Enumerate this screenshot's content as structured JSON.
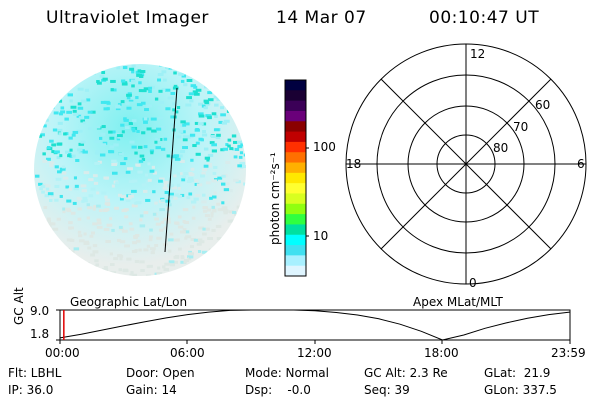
{
  "header": {
    "instrument": "Ultraviolet Imager",
    "date": "14 Mar 07",
    "time": "00:10:47 UT"
  },
  "colorbar": {
    "unit_label": "photon cm⁻²s⁻¹",
    "ticks": [
      "100",
      "10"
    ],
    "scale": "log",
    "colors": [
      "#000040",
      "#1a0033",
      "#3b0057",
      "#6a007a",
      "#8a0000",
      "#c00000",
      "#ff3000",
      "#ff7000",
      "#ffb000",
      "#ffe800",
      "#ffff30",
      "#d8ff20",
      "#90ff10",
      "#30ff40",
      "#00e0a0",
      "#00ffff",
      "#40e0f0",
      "#a8f0ff",
      "#dff5ff"
    ]
  },
  "polar_plot": {
    "hour_labels": {
      "top": "12",
      "left": "18",
      "right": "6",
      "bottom": "0"
    },
    "lat_labels": [
      "60",
      "70",
      "80"
    ]
  },
  "labels": {
    "geo": "Geographic Lat/Lon",
    "apex": "Apex MLat/MLT"
  },
  "altitude_plot": {
    "ylabel": "GC Alt",
    "yticks": [
      "9.0",
      "1.8"
    ],
    "xticks": [
      "00:00",
      "06:00",
      "12:00",
      "18:00",
      "23:59"
    ],
    "series_hours": [
      0,
      1,
      2,
      3,
      4,
      5,
      6,
      7,
      8,
      9,
      10,
      11,
      12,
      13,
      14,
      15,
      16,
      17,
      18,
      19,
      20,
      21,
      22,
      23,
      23.98
    ],
    "series_alt": [
      2.3,
      3.2,
      4.2,
      5.2,
      6.2,
      7.1,
      7.9,
      8.5,
      8.9,
      9.0,
      9.0,
      9.0,
      8.8,
      8.4,
      7.8,
      6.9,
      5.6,
      3.9,
      1.8,
      3.0,
      4.6,
      5.9,
      7.0,
      7.9,
      8.5
    ],
    "current_hour": 0.18,
    "ylim": [
      1.8,
      9.0
    ]
  },
  "info": {
    "flt": "Flt: LBHL",
    "ip": "IP: 36.0",
    "door": "Door: Open",
    "gain": "Gain: 14",
    "mode": "Mode: Normal",
    "dsp": "Dsp:    -0.0",
    "gcalt": "GC Alt: 2.3 Re",
    "seq": "Seq: 39",
    "glat": "GLat:  21.9",
    "glon": "GLon: 337.5"
  }
}
